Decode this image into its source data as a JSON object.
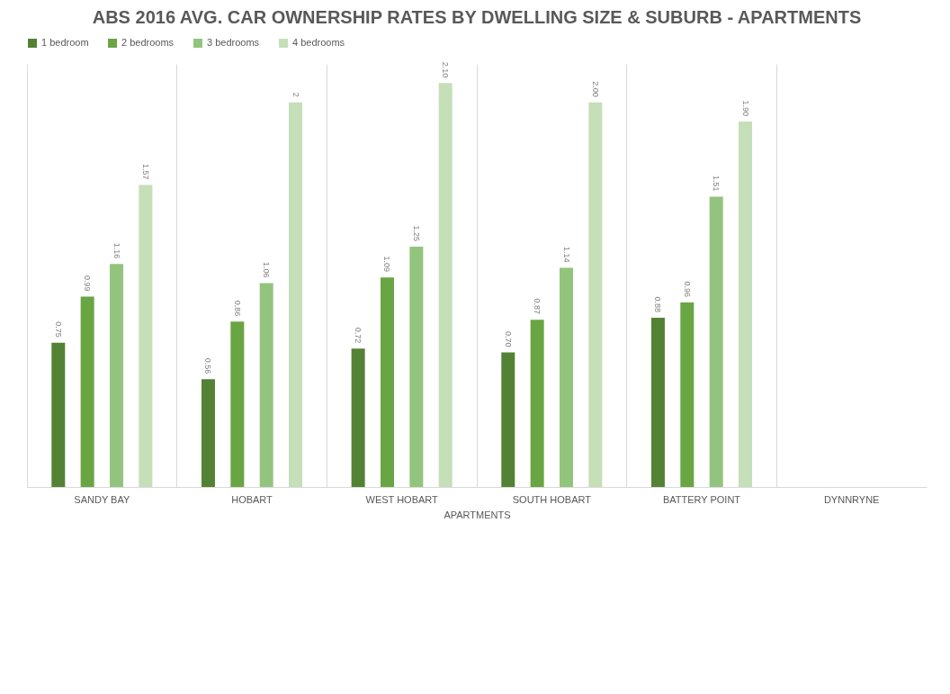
{
  "chart_data": {
    "type": "bar",
    "title": "ABS 2016 AVG. CAR OWNERSHIP RATES BY DWELLING SIZE & SUBURB - APARTMENTS",
    "xlabel": "APARTMENTS",
    "categories": [
      "SANDY BAY",
      "HOBART",
      "WEST HOBART",
      "SOUTH HOBART",
      "BATTERY POINT",
      "DYNNRYNE"
    ],
    "series": [
      {
        "name": "1 bedroom",
        "color": "#548235",
        "values": [
          0.75,
          0.56,
          0.72,
          0.7,
          0.88,
          null
        ],
        "value_labels": [
          "0.75",
          "0.56",
          "0.72",
          "0.70",
          "0.88",
          null
        ]
      },
      {
        "name": "2 bedrooms",
        "color": "#6aa544",
        "values": [
          0.99,
          0.86,
          1.09,
          0.87,
          0.96,
          null
        ],
        "value_labels": [
          "0.99",
          "0.86",
          "1.09",
          "0.87",
          "0.96",
          null
        ]
      },
      {
        "name": "3 bedrooms",
        "color": "#93c47d",
        "values": [
          1.16,
          1.06,
          1.25,
          1.14,
          1.51,
          null
        ],
        "value_labels": [
          "1.16",
          "1.06",
          "1.25",
          "1.14",
          "1.51",
          null
        ]
      },
      {
        "name": "4 bedrooms",
        "color": "#c5dfb8",
        "values": [
          1.57,
          2,
          2.1,
          2.0,
          1.9,
          null
        ],
        "value_labels": [
          "1.57",
          "2",
          "2.10",
          "2.00",
          "1.90",
          null
        ]
      }
    ],
    "grid": "x",
    "legend": "top"
  }
}
